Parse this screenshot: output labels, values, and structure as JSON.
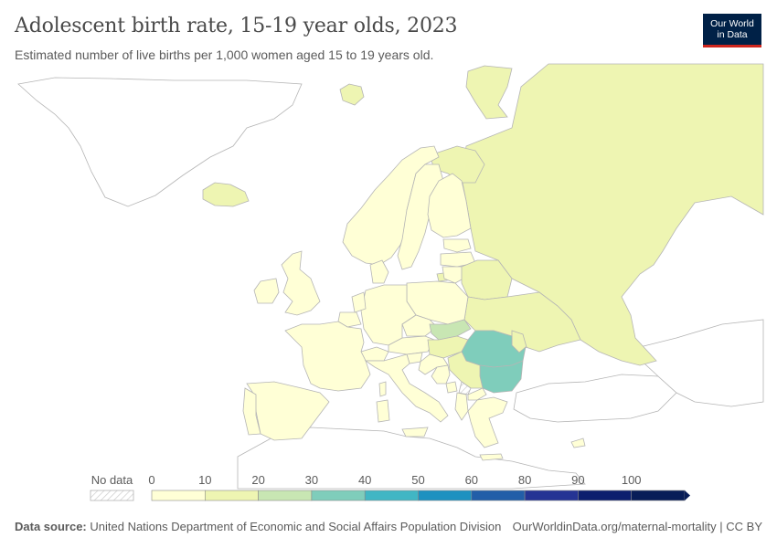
{
  "header": {
    "title": "Adolescent birth rate, 15-19 year olds, 2023",
    "subtitle": "Estimated number of live births per 1,000 women aged 15 to 19 years old."
  },
  "logo": {
    "line1": "Our World",
    "line2": "in Data"
  },
  "legend": {
    "no_data_label": "No data",
    "ticks": [
      "0",
      "10",
      "20",
      "30",
      "40",
      "50",
      "60",
      "80",
      "90",
      "100"
    ],
    "bin_colors": [
      "#ffffd6",
      "#eef5b2",
      "#c8e6b3",
      "#7fcdbb",
      "#41b6c4",
      "#1d91c0",
      "#225ea8",
      "#253494",
      "#0c1f6e",
      "#081d58"
    ]
  },
  "colors": {
    "no_data_fill": "#ffffff",
    "outside_fill": "#ffffff",
    "border": "#b5b5b5"
  },
  "map_data": {
    "indicator": "Adolescent birth rate, 15-19 year olds",
    "year": 2023,
    "regions": [
      {
        "name": "Russia",
        "bin": 1
      },
      {
        "name": "Belarus",
        "bin": 1
      },
      {
        "name": "Ukraine",
        "bin": 1
      },
      {
        "name": "Moldova",
        "bin": 1
      },
      {
        "name": "Slovakia",
        "bin": 2
      },
      {
        "name": "Hungary",
        "bin": 1
      },
      {
        "name": "Romania",
        "bin": 3
      },
      {
        "name": "Bulgaria",
        "bin": 3
      },
      {
        "name": "Serbia",
        "bin": 1
      },
      {
        "name": "Iceland",
        "bin": 1
      },
      {
        "name": "Finland",
        "bin": 0
      },
      {
        "name": "Sweden",
        "bin": 0
      },
      {
        "name": "Norway",
        "bin": 0
      },
      {
        "name": "Estonia",
        "bin": 0
      },
      {
        "name": "Latvia",
        "bin": 0
      },
      {
        "name": "Lithuania",
        "bin": 0
      },
      {
        "name": "Poland",
        "bin": 0
      },
      {
        "name": "Germany",
        "bin": 0
      },
      {
        "name": "Denmark",
        "bin": 0
      },
      {
        "name": "Netherlands",
        "bin": 0
      },
      {
        "name": "Belgium",
        "bin": 0
      },
      {
        "name": "France",
        "bin": 0
      },
      {
        "name": "Spain",
        "bin": 0
      },
      {
        "name": "Portugal",
        "bin": 0
      },
      {
        "name": "Italy",
        "bin": 0
      },
      {
        "name": "Switzerland",
        "bin": 0
      },
      {
        "name": "Austria",
        "bin": 0
      },
      {
        "name": "Czechia",
        "bin": 0
      },
      {
        "name": "Slovenia",
        "bin": 0
      },
      {
        "name": "Croatia",
        "bin": 0
      },
      {
        "name": "Bosnia and Herzegovina",
        "bin": 0
      },
      {
        "name": "Montenegro",
        "bin": 0
      },
      {
        "name": "North Macedonia",
        "bin": 0
      },
      {
        "name": "Albania",
        "bin": 0
      },
      {
        "name": "Greece",
        "bin": 0
      },
      {
        "name": "Cyprus",
        "bin": 0
      },
      {
        "name": "United Kingdom",
        "bin": 0
      },
      {
        "name": "Ireland",
        "bin": 0
      }
    ]
  },
  "footer": {
    "source_label": "Data source:",
    "source_text": "United Nations Department of Economic and Social Affairs Population Division",
    "url_text": "OurWorldinData.org/maternal-mortality | CC BY"
  }
}
